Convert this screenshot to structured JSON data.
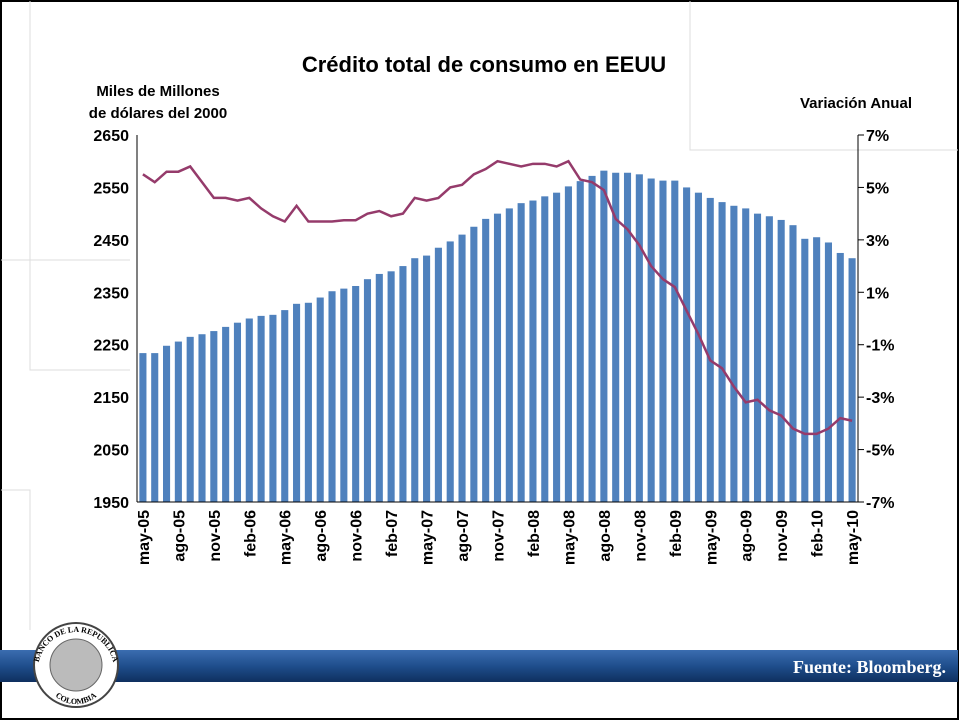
{
  "chart_data": {
    "type": "bar",
    "title": "Crédito total de consumo en EEUU",
    "ylabel": [
      "Miles de Millones",
      "de dólares del 2000"
    ],
    "y2label": "Variación Anual",
    "categories": [
      "may-05",
      null,
      null,
      "ago-05",
      null,
      null,
      "nov-05",
      null,
      null,
      "feb-06",
      null,
      null,
      "may-06",
      null,
      null,
      "ago-06",
      null,
      null,
      "nov-06",
      null,
      null,
      "feb-07",
      null,
      null,
      "may-07",
      null,
      null,
      "ago-07",
      null,
      null,
      "nov-07",
      null,
      null,
      "feb-08",
      null,
      null,
      "may-08",
      null,
      null,
      "ago-08",
      null,
      null,
      "nov-08",
      null,
      null,
      "feb-09",
      null,
      null,
      "may-09",
      null,
      null,
      "ago-09",
      null,
      null,
      "nov-09",
      null,
      null,
      "feb-10",
      null,
      null,
      "may-10"
    ],
    "series": [
      {
        "type": "bar",
        "color": "#4f81bd",
        "values": [
          2234,
          2234,
          2248,
          2256,
          2265,
          2270,
          2276,
          2284,
          2292,
          2300,
          2305,
          2307,
          2316,
          2328,
          2330,
          2340,
          2352,
          2357,
          2362,
          2375,
          2385,
          2390,
          2400,
          2415,
          2420,
          2435,
          2447,
          2460,
          2475,
          2490,
          2500,
          2510,
          2520,
          2525,
          2533,
          2540,
          2552,
          2562,
          2572,
          2582,
          2578,
          2578,
          2575,
          2567,
          2563,
          2563,
          2550,
          2540,
          2530,
          2522,
          2515,
          2510,
          2500,
          2495,
          2488,
          2478,
          2452,
          2455,
          2445,
          2425,
          2415
        ]
      },
      {
        "type": "line",
        "axis": "y2",
        "color": "#953b6b",
        "values": [
          5.5,
          5.2,
          5.6,
          5.6,
          5.8,
          5.2,
          4.6,
          4.6,
          4.5,
          4.6,
          4.2,
          3.9,
          3.7,
          4.3,
          3.7,
          3.7,
          3.7,
          3.75,
          3.75,
          4.0,
          4.1,
          3.9,
          4.0,
          4.6,
          4.5,
          4.6,
          5.0,
          5.1,
          5.5,
          5.7,
          6.0,
          5.9,
          5.8,
          5.9,
          5.9,
          5.8,
          6.0,
          5.3,
          5.2,
          4.9,
          3.8,
          3.4,
          2.8,
          2.0,
          1.5,
          1.2,
          0.3,
          -0.6,
          -1.6,
          -1.9,
          -2.6,
          -3.2,
          -3.1,
          -3.5,
          -3.7,
          -4.2,
          -4.4,
          -4.4,
          -4.2,
          -3.8,
          -3.9
        ]
      }
    ],
    "ylim": [
      1950,
      2650
    ],
    "yticks": [
      1950,
      2050,
      2150,
      2250,
      2350,
      2450,
      2550,
      2650
    ],
    "y2lim": [
      -7,
      7
    ],
    "y2ticks": [
      {
        "value": -7,
        "label": "-7%"
      },
      {
        "value": -5,
        "label": "-5%"
      },
      {
        "value": -3,
        "label": "-3%"
      },
      {
        "value": -1,
        "label": "-1%"
      },
      {
        "value": 1,
        "label": "1%"
      },
      {
        "value": 3,
        "label": "3%"
      },
      {
        "value": 5,
        "label": "5%"
      },
      {
        "value": 7,
        "label": "7%"
      }
    ]
  },
  "footer": {
    "source": "Fuente: Bloomberg.",
    "logo_top": "BANCO DE LA REPUBLICA",
    "logo_bottom": "COLOMBIA"
  }
}
